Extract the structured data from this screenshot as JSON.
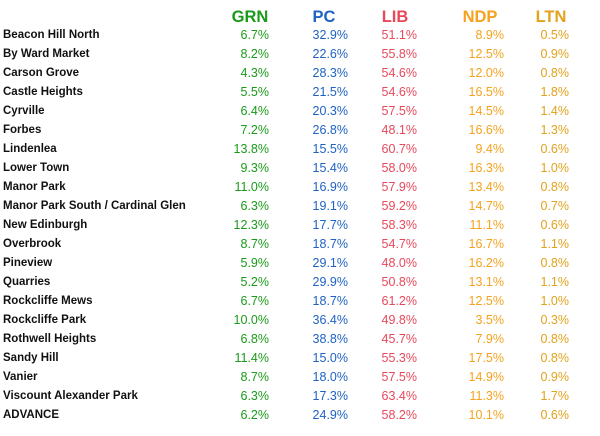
{
  "colors": {
    "GRN": "#1a9a1a",
    "PC": "#1f62c2",
    "LIB": "#e8485b",
    "NDP": "#f5a21e",
    "LTN": "#e2a21c"
  },
  "columns": [
    "GRN",
    "PC",
    "LIB",
    "NDP",
    "LTN"
  ],
  "rows": [
    {
      "name": "Beacon Hill North",
      "GRN": "6.7%",
      "PC": "32.9%",
      "LIB": "51.1%",
      "NDP": "8.9%",
      "LTN": "0.5%"
    },
    {
      "name": "By Ward Market",
      "GRN": "8.2%",
      "PC": "22.6%",
      "LIB": "55.8%",
      "NDP": "12.5%",
      "LTN": "0.9%"
    },
    {
      "name": "Carson Grove",
      "GRN": "4.3%",
      "PC": "28.3%",
      "LIB": "54.6%",
      "NDP": "12.0%",
      "LTN": "0.8%"
    },
    {
      "name": "Castle Heights",
      "GRN": "5.5%",
      "PC": "21.5%",
      "LIB": "54.6%",
      "NDP": "16.5%",
      "LTN": "1.8%"
    },
    {
      "name": "Cyrville",
      "GRN": "6.4%",
      "PC": "20.3%",
      "LIB": "57.5%",
      "NDP": "14.5%",
      "LTN": "1.4%"
    },
    {
      "name": "Forbes",
      "GRN": "7.2%",
      "PC": "26.8%",
      "LIB": "48.1%",
      "NDP": "16.6%",
      "LTN": "1.3%"
    },
    {
      "name": "Lindenlea",
      "GRN": "13.8%",
      "PC": "15.5%",
      "LIB": "60.7%",
      "NDP": "9.4%",
      "LTN": "0.6%"
    },
    {
      "name": "Lower Town",
      "GRN": "9.3%",
      "PC": "15.4%",
      "LIB": "58.0%",
      "NDP": "16.3%",
      "LTN": "1.0%"
    },
    {
      "name": "Manor Park",
      "GRN": "11.0%",
      "PC": "16.9%",
      "LIB": "57.9%",
      "NDP": "13.4%",
      "LTN": "0.8%"
    },
    {
      "name": "Manor Park South / Cardinal Glen",
      "GRN": "6.3%",
      "PC": "19.1%",
      "LIB": "59.2%",
      "NDP": "14.7%",
      "LTN": "0.7%"
    },
    {
      "name": "New Edinburgh",
      "GRN": "12.3%",
      "PC": "17.7%",
      "LIB": "58.3%",
      "NDP": "11.1%",
      "LTN": "0.6%"
    },
    {
      "name": "Overbrook",
      "GRN": "8.7%",
      "PC": "18.7%",
      "LIB": "54.7%",
      "NDP": "16.7%",
      "LTN": "1.1%"
    },
    {
      "name": "Pineview",
      "GRN": "5.9%",
      "PC": "29.1%",
      "LIB": "48.0%",
      "NDP": "16.2%",
      "LTN": "0.8%"
    },
    {
      "name": "Quarries",
      "GRN": "5.2%",
      "PC": "29.9%",
      "LIB": "50.8%",
      "NDP": "13.1%",
      "LTN": "1.1%"
    },
    {
      "name": "Rockcliffe Mews",
      "GRN": "6.7%",
      "PC": "18.7%",
      "LIB": "61.2%",
      "NDP": "12.5%",
      "LTN": "1.0%"
    },
    {
      "name": "Rockcliffe Park",
      "GRN": "10.0%",
      "PC": "36.4%",
      "LIB": "49.8%",
      "NDP": "3.5%",
      "LTN": "0.3%"
    },
    {
      "name": "Rothwell Heights",
      "GRN": "6.8%",
      "PC": "38.8%",
      "LIB": "45.7%",
      "NDP": "7.9%",
      "LTN": "0.8%"
    },
    {
      "name": "Sandy Hill",
      "GRN": "11.4%",
      "PC": "15.0%",
      "LIB": "55.3%",
      "NDP": "17.5%",
      "LTN": "0.8%"
    },
    {
      "name": "Vanier",
      "GRN": "8.7%",
      "PC": "18.0%",
      "LIB": "57.5%",
      "NDP": "14.9%",
      "LTN": "0.9%"
    },
    {
      "name": "Viscount Alexander Park",
      "GRN": "6.3%",
      "PC": "17.3%",
      "LIB": "63.4%",
      "NDP": "11.3%",
      "LTN": "1.7%"
    },
    {
      "name": "ADVANCE",
      "GRN": "6.2%",
      "PC": "24.9%",
      "LIB": "58.2%",
      "NDP": "10.1%",
      "LTN": "0.6%"
    }
  ]
}
